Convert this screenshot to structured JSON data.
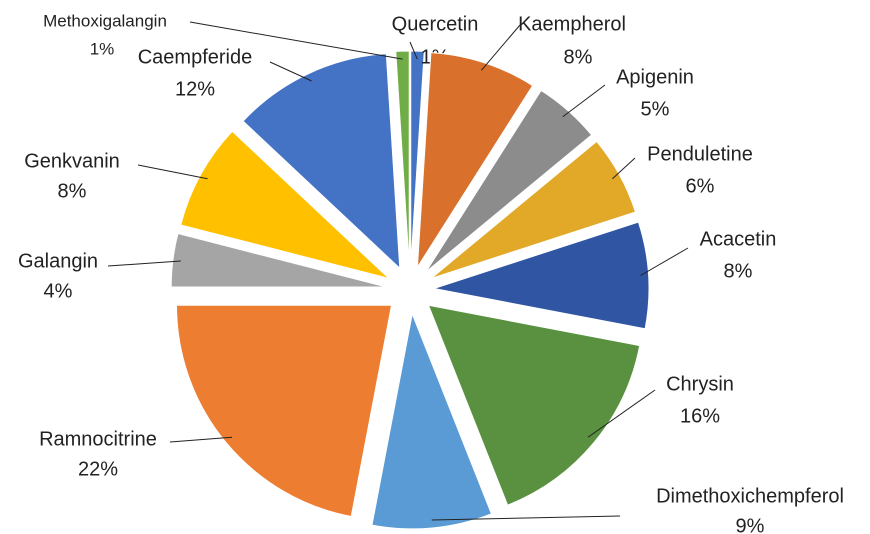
{
  "chart_data": {
    "type": "pie",
    "categories": [
      "Quercetin",
      "Kaempherol",
      "Apigenin",
      "Penduletine",
      "Acacetin",
      "Chrysin",
      "Dimethoxichempferol",
      "Ramnocitrine",
      "Galangin",
      "Genkvanin",
      "Caempferide",
      "Methoxigalangin"
    ],
    "values": [
      1,
      8,
      5,
      6,
      8,
      16,
      9,
      22,
      4,
      8,
      12,
      1
    ],
    "value_labels": [
      "1%",
      "8%",
      "5%",
      "6%",
      "8%",
      "16%",
      "9%",
      "22%",
      "4%",
      "8%",
      "12%",
      "1%"
    ],
    "colors": [
      "#4472c4",
      "#d9702c",
      "#8c8c8c",
      "#e2a928",
      "#2f55a3",
      "#5a9140",
      "#5b9bd5",
      "#ed7d31",
      "#a5a5a5",
      "#ffc000",
      "#4472c4",
      "#70ad47"
    ]
  }
}
